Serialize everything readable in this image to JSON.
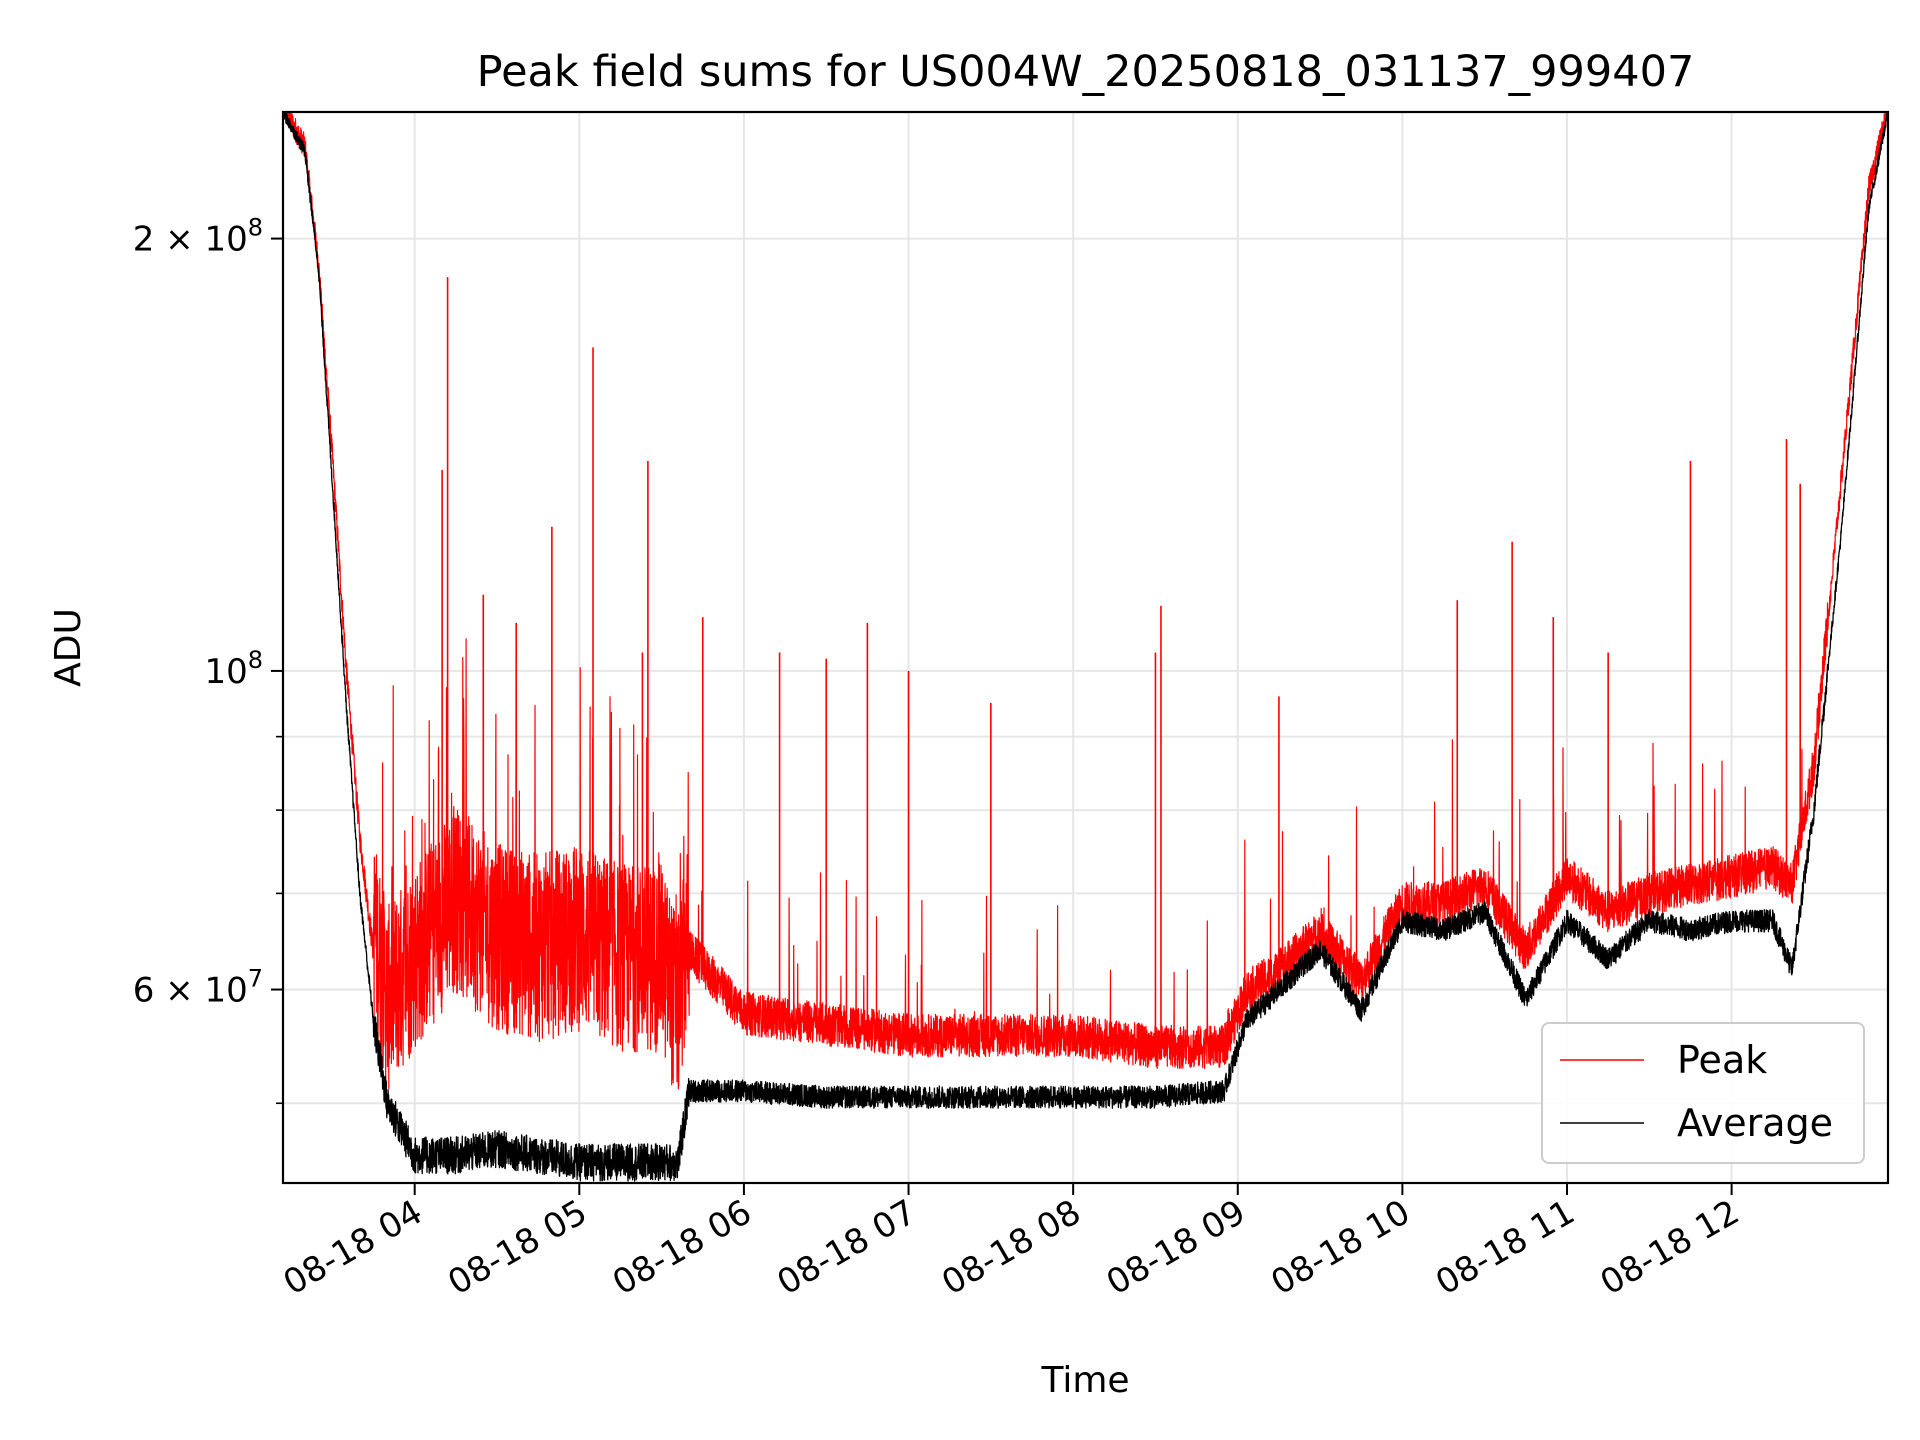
{
  "chart_data": {
    "type": "line",
    "title": "Peak field sums for US004W_20250818_031137_999407",
    "xlabel": "Time",
    "ylabel": "ADU",
    "y_scale": "log",
    "ylim": [
      44000000,
      245000000
    ],
    "xlim": [
      "08-18 03:12",
      "08-18 12:57"
    ],
    "x_ticks": [
      {
        "value": "08-18 04:00",
        "label": "08-18 04"
      },
      {
        "value": "08-18 05:00",
        "label": "08-18 05"
      },
      {
        "value": "08-18 06:00",
        "label": "08-18 06"
      },
      {
        "value": "08-18 07:00",
        "label": "08-18 07"
      },
      {
        "value": "08-18 08:00",
        "label": "08-18 08"
      },
      {
        "value": "08-18 09:00",
        "label": "08-18 09"
      },
      {
        "value": "08-18 10:00",
        "label": "08-18 10"
      },
      {
        "value": "08-18 11:00",
        "label": "08-18 11"
      },
      {
        "value": "08-18 12:00",
        "label": "08-18 12"
      }
    ],
    "y_major_ticks": [
      {
        "value": 60000000,
        "label": "6 × 10⁷",
        "mantissa": "6",
        "exp": "7"
      },
      {
        "value": 100000000,
        "label": "10⁸",
        "mantissa": "",
        "exp": "8"
      },
      {
        "value": 200000000,
        "label": "2 × 10⁸",
        "mantissa": "2",
        "exp": "8"
      }
    ],
    "y_minor_ticks": [
      50000000,
      70000000,
      80000000,
      90000000
    ],
    "grid": true,
    "legend": {
      "position": "lower-right"
    },
    "series": [
      {
        "name": "Peak",
        "color": "#ff0000",
        "x": [
          "08-18 03:12",
          "08-18 03:20",
          "08-18 03:25",
          "08-18 03:30",
          "08-18 03:35",
          "08-18 03:40",
          "08-18 03:45",
          "08-18 03:50",
          "08-18 04:00",
          "08-18 04:15",
          "08-18 04:30",
          "08-18 04:45",
          "08-18 05:00",
          "08-18 05:15",
          "08-18 05:30",
          "08-18 05:36",
          "08-18 05:40",
          "08-18 06:00",
          "08-18 06:30",
          "08-18 07:00",
          "08-18 07:30",
          "08-18 08:00",
          "08-18 08:30",
          "08-18 08:55",
          "08-18 09:03",
          "08-18 09:15",
          "08-18 09:30",
          "08-18 09:45",
          "08-18 10:00",
          "08-18 10:15",
          "08-18 10:30",
          "08-18 10:45",
          "08-18 11:00",
          "08-18 11:15",
          "08-18 11:30",
          "08-18 11:45",
          "08-18 12:00",
          "08-18 12:15",
          "08-18 12:22",
          "08-18 12:30",
          "08-18 12:40",
          "08-18 12:50",
          "08-18 12:57"
        ],
        "values": [
          245000000,
          230000000,
          190000000,
          140000000,
          100000000,
          76000000,
          63000000,
          56000000,
          60000000,
          66000000,
          62000000,
          61000000,
          62000000,
          60000000,
          60000000,
          55000000,
          63000000,
          57000000,
          56000000,
          55000000,
          55000000,
          55000000,
          54000000,
          54000000,
          59000000,
          61000000,
          65000000,
          60000000,
          68000000,
          68000000,
          70000000,
          63000000,
          71000000,
          67000000,
          69000000,
          70000000,
          71000000,
          72000000,
          70000000,
          85000000,
          135000000,
          215000000,
          245000000
        ],
        "spikes": [
          {
            "x": "08-18 04:12",
            "value": 188000000
          },
          {
            "x": "08-18 04:10",
            "value": 138000000
          },
          {
            "x": "08-18 04:25",
            "value": 113000000
          },
          {
            "x": "08-18 04:37",
            "value": 108000000
          },
          {
            "x": "08-18 04:50",
            "value": 126000000
          },
          {
            "x": "08-18 05:05",
            "value": 168000000
          },
          {
            "x": "08-18 05:25",
            "value": 140000000
          },
          {
            "x": "08-18 05:23",
            "value": 103000000
          },
          {
            "x": "08-18 05:45",
            "value": 109000000
          },
          {
            "x": "08-18 06:13",
            "value": 103000000
          },
          {
            "x": "08-18 06:30",
            "value": 102000000
          },
          {
            "x": "08-18 06:45",
            "value": 108000000
          },
          {
            "x": "08-18 07:00",
            "value": 100000000
          },
          {
            "x": "08-18 07:30",
            "value": 95000000
          },
          {
            "x": "08-18 08:32",
            "value": 111000000
          },
          {
            "x": "08-18 08:30",
            "value": 103000000
          },
          {
            "x": "08-18 09:15",
            "value": 96000000
          },
          {
            "x": "08-18 10:20",
            "value": 112000000
          },
          {
            "x": "08-18 10:40",
            "value": 123000000
          },
          {
            "x": "08-18 10:55",
            "value": 109000000
          },
          {
            "x": "08-18 11:15",
            "value": 103000000
          },
          {
            "x": "08-18 11:45",
            "value": 140000000
          },
          {
            "x": "08-18 12:20",
            "value": 145000000
          },
          {
            "x": "08-18 12:25",
            "value": 135000000
          }
        ]
      },
      {
        "name": "Average",
        "color": "#000000",
        "x": [
          "08-18 03:12",
          "08-18 03:20",
          "08-18 03:25",
          "08-18 03:30",
          "08-18 03:35",
          "08-18 03:40",
          "08-18 03:45",
          "08-18 03:50",
          "08-18 04:00",
          "08-18 04:15",
          "08-18 04:30",
          "08-18 04:45",
          "08-18 05:00",
          "08-18 05:15",
          "08-18 05:30",
          "08-18 05:36",
          "08-18 05:40",
          "08-18 06:00",
          "08-18 06:30",
          "08-18 07:00",
          "08-18 07:30",
          "08-18 08:00",
          "08-18 08:30",
          "08-18 08:55",
          "08-18 09:03",
          "08-18 09:15",
          "08-18 09:30",
          "08-18 09:45",
          "08-18 10:00",
          "08-18 10:15",
          "08-18 10:30",
          "08-18 10:45",
          "08-18 11:00",
          "08-18 11:15",
          "08-18 11:30",
          "08-18 11:45",
          "08-18 12:00",
          "08-18 12:15",
          "08-18 12:22",
          "08-18 12:30",
          "08-18 12:40",
          "08-18 12:50",
          "08-18 12:57"
        ],
        "values": [
          245000000,
          230000000,
          190000000,
          135000000,
          95000000,
          70000000,
          57000000,
          50000000,
          46000000,
          46000000,
          46500000,
          46000000,
          45500000,
          45500000,
          45500000,
          45500000,
          51000000,
          51000000,
          50500000,
          50500000,
          50500000,
          50500000,
          50500000,
          51000000,
          57000000,
          60000000,
          64000000,
          58000000,
          67000000,
          66000000,
          68000000,
          59000000,
          67000000,
          63000000,
          67000000,
          66000000,
          67000000,
          67000000,
          62000000,
          80000000,
          125000000,
          210000000,
          245000000
        ]
      }
    ]
  }
}
